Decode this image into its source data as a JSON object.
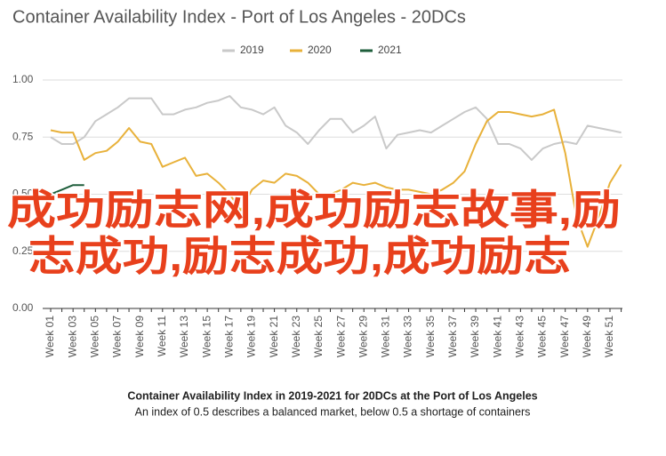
{
  "chart_data": {
    "type": "line",
    "title": "Container Availability Index - Port of Los Angeles - 20DCs",
    "caption_title": "Container Availability Index in 2019-2021 for 20DCs at the Port of Los Angeles",
    "caption_subtitle": "An index of 0.5 describes a balanced market, below 0.5 a shortage of containers",
    "overlay_text": [
      "成功励志网,成功励志故事,励",
      "志成功,励志成功,成功励志"
    ],
    "categories": [
      "Week 01",
      null,
      "Week 03",
      null,
      "Week 05",
      null,
      "Week 07",
      null,
      "Week 09",
      null,
      "Week 11",
      null,
      "Week 13",
      null,
      "Week 15",
      null,
      "Week 17",
      null,
      "Week 19",
      null,
      "Week 21",
      null,
      "Week 23",
      null,
      "Week 25",
      null,
      "Week 27",
      null,
      "Week 29",
      null,
      "Week 31",
      null,
      "Week 33",
      null,
      "Week 35",
      null,
      "Week 37",
      null,
      "Week 39",
      null,
      "Week 41",
      null,
      "Week 43",
      null,
      "Week 45",
      null,
      "Week 47",
      null,
      "Week 49",
      null,
      "Week 51",
      null
    ],
    "series": [
      {
        "name": "2019",
        "color": "#c9c9c9",
        "values": [
          0.75,
          0.72,
          0.72,
          0.75,
          0.82,
          0.85,
          0.88,
          0.92,
          0.92,
          0.92,
          0.85,
          0.85,
          0.87,
          0.88,
          0.9,
          0.91,
          0.93,
          0.88,
          0.87,
          0.85,
          0.88,
          0.8,
          0.77,
          0.72,
          0.78,
          0.83,
          0.83,
          0.77,
          0.8,
          0.84,
          0.7,
          0.76,
          0.77,
          0.78,
          0.77,
          0.8,
          0.83,
          0.86,
          0.88,
          0.83,
          0.72,
          0.72,
          0.7,
          0.65,
          0.7,
          0.72,
          0.73,
          0.72,
          0.8,
          0.79,
          0.78,
          0.77
        ]
      },
      {
        "name": "2020",
        "color": "#e8b13a",
        "values": [
          0.78,
          0.77,
          0.77,
          0.65,
          0.68,
          0.69,
          0.73,
          0.79,
          0.73,
          0.72,
          0.62,
          0.64,
          0.66,
          0.58,
          0.59,
          0.55,
          0.5,
          0.43,
          0.52,
          0.56,
          0.55,
          0.59,
          0.58,
          0.55,
          0.5,
          0.5,
          0.52,
          0.55,
          0.54,
          0.55,
          0.53,
          0.52,
          0.52,
          0.51,
          0.5,
          0.52,
          0.55,
          0.6,
          0.72,
          0.82,
          0.86,
          0.86,
          0.85,
          0.84,
          0.85,
          0.87,
          0.68,
          0.4,
          0.27,
          0.4,
          0.55,
          0.63
        ]
      },
      {
        "name": "2021",
        "color": "#1e5e3b",
        "values": [
          0.5,
          0.52,
          0.54,
          0.54,
          null,
          null,
          null,
          null,
          null,
          null,
          null,
          null,
          null,
          null,
          null,
          null,
          null,
          null,
          null,
          null,
          null,
          null,
          null,
          null,
          null,
          null,
          null,
          null,
          null,
          null,
          null,
          null,
          null,
          null,
          null,
          null,
          null,
          null,
          null,
          null,
          null,
          null,
          null,
          null,
          null,
          null,
          null,
          null,
          null,
          null,
          null,
          null
        ]
      }
    ],
    "ylim": [
      0,
      1
    ],
    "yticks": [
      {
        "value": 0,
        "label": "0.00"
      },
      {
        "value": 0.25,
        "label": "0.25"
      },
      {
        "value": 0.5,
        "label": "0.50"
      },
      {
        "value": 0.75,
        "label": "0.75"
      },
      {
        "value": 1,
        "label": "1.00"
      }
    ],
    "grid": true,
    "legend": "top"
  }
}
